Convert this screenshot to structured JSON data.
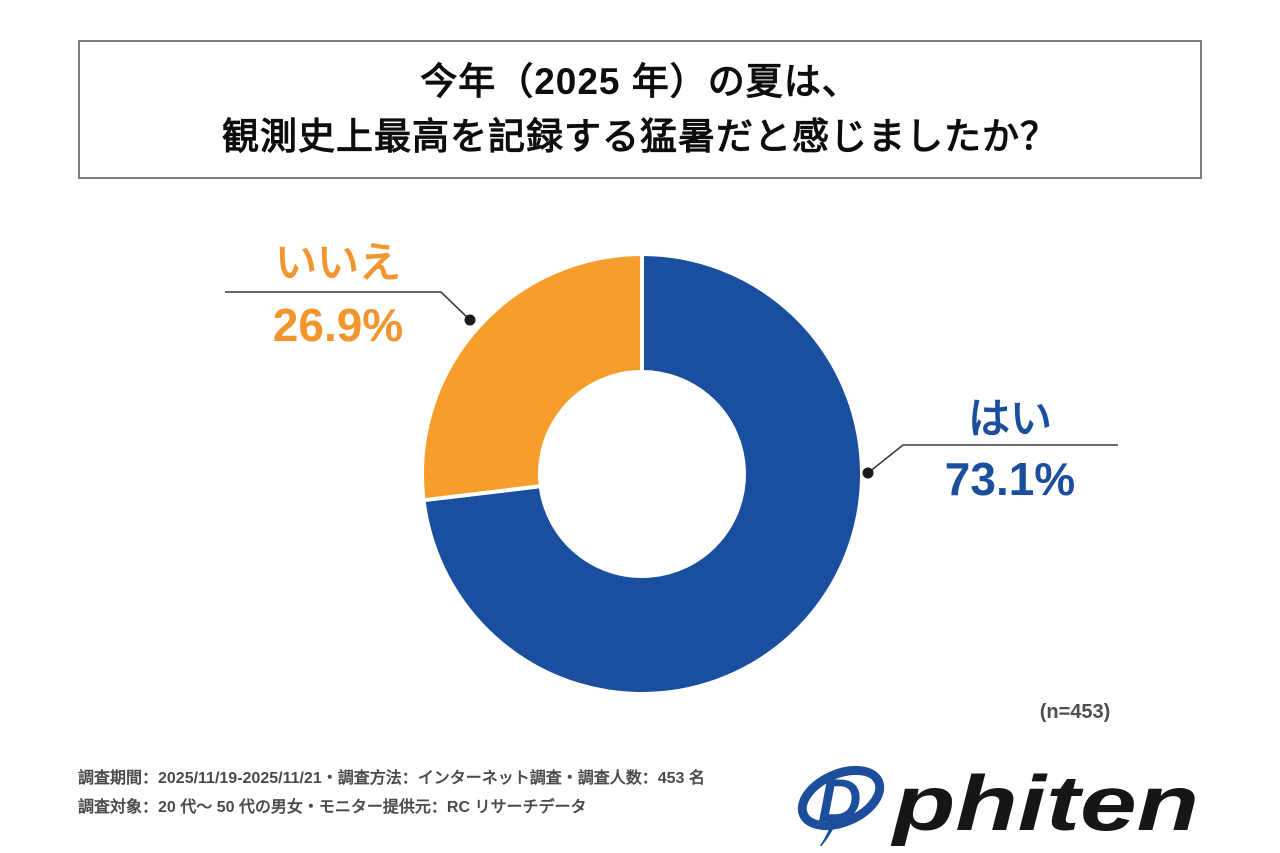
{
  "title": {
    "line1": "今年（2025 年）の夏は、",
    "line2": "観測史上最高を記録する猛暑だと感じましたか？"
  },
  "chart_data": {
    "type": "pie",
    "subtype": "donut",
    "title": "今年（2025 年）の夏は、観測史上最高を記録する猛暑だと感じましたか？",
    "categories": [
      "はい",
      "いいえ"
    ],
    "ids": [
      "yes",
      "no"
    ],
    "values": [
      73.1,
      26.9
    ],
    "unit": "%",
    "value_labels": [
      "73.1%",
      "26.9%"
    ],
    "colors": [
      "#1a4f9f",
      "#f79d2c"
    ],
    "label_colors": [
      "#1b4f9e",
      "#f2952c"
    ],
    "start_angle_deg": 0,
    "direction": "clockwise",
    "inner_radius_ratio": 0.46,
    "legend_position": "callout",
    "note": "(n=453)"
  },
  "footer": {
    "line1": "調査期間：2025/11/19-2025/11/21・調査方法：インターネット調査・調査人数：453 名",
    "line2": "調査対象：20 代〜 50 代の男女・モニター提供元：RC リサーチデータ"
  },
  "logo": {
    "wordmark": "phiten",
    "mark": "phiten-d-swoosh",
    "brand_color": "#1c4e9c"
  }
}
